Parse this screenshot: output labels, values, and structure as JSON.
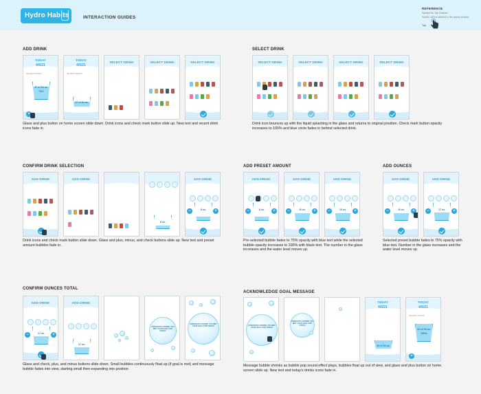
{
  "header": {
    "logo": "Hydro Habits",
    "page_title": "INTERACTION GUIDES",
    "reference": {
      "title": "REFERENCE",
      "subtitle_line1": "Symbol for Tap Gesture",
      "subtitle_line2": "Screen will be labeled in the actual product.",
      "tap_label": "Tap"
    }
  },
  "screen_text": {
    "today": "TODAY",
    "date": "4/6/21",
    "select_drink": "SELECT DRINK",
    "add_drink": "ADD DRINK",
    "recent": "RECENT DRINKS",
    "glass_home": "47 of 64 oz.",
    "glass_home_pct": "74%",
    "glass_goal": "64 of 64 oz.",
    "glass_goal_pct": "100%",
    "oz8": "8 oz.",
    "oz16": "16 oz.",
    "oz17": "17 oz.",
    "goal_message": "CONGRATULATIONS! YOU MET YOUR GOAL FOR TODAY!"
  },
  "sections": [
    {
      "title": "ADD DRINK",
      "description": "Glass and plus button on home screen slide down. Drink icons and check mark button slide up. New text and recent drink icons fade in."
    },
    {
      "title": "SELECT DRINK",
      "description": "Drink icon bounces up with the liquid splashing in the glass and returns to original position. Check mark button opacity increases to 100% and blue circle fades in behind selected drink."
    },
    {
      "title": "CONFIRM DRINK SELECTION",
      "description": "Drink icons and check mark button slide down. Glass and plus, minus, and check buttons slide up. New text and preset amount bubbles fade in."
    },
    {
      "title": "ADD PRESET AMOUNT",
      "description": "Pre-selected bubble fades to 75% opacity with blue text while the selected bubble opacity increases to 100% with black text. The number in the glass increases and the water level moves up."
    },
    {
      "title": "ADD OUNCES",
      "description": "Selected preset bubble fades to 75% opacity with blue text. Number in the glass increases and the water level moves up."
    },
    {
      "title": "CONFIRM OUNCES TOTAL",
      "description": "Glass and check, plus, and minus buttons slide down. Small bubbles continuously float up (if goal is met) and message bubble fades into view, starting small then expanding into position."
    },
    {
      "title": "ACKNOWLEDGE GOAL MESSAGE",
      "description": "Message bubble shrinks as bubble pop sound effect plays, bubbles float up out of view, and glass and plus button on home screen slide up. New text and today's drinks icons fade in."
    }
  ],
  "colors": {
    "accent": "#2ca6dc",
    "header_bg": "#ddf3fb",
    "water": "#9edcf6"
  }
}
